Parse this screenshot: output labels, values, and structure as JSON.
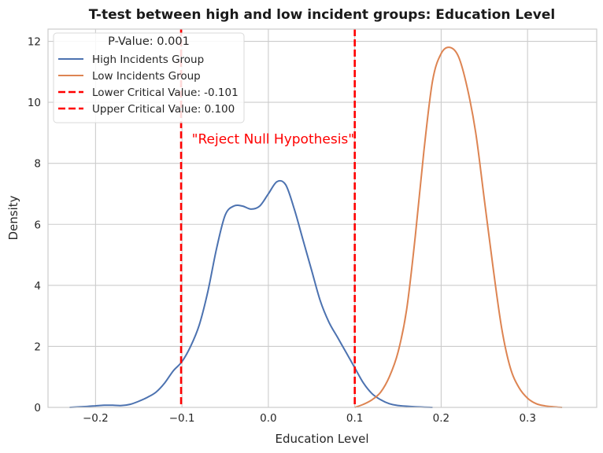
{
  "chart_data": {
    "type": "line",
    "title": "T-test between high and low incident groups: Education Level",
    "xlabel": "Education Level",
    "ylabel": "Density",
    "xlim": [
      -0.255,
      0.38
    ],
    "ylim": [
      0,
      12.4
    ],
    "xticks": [
      -0.2,
      -0.1,
      0.0,
      0.1,
      0.2,
      0.3
    ],
    "xtick_labels": [
      "−0.2",
      "−0.1",
      "0.0",
      "0.1",
      "0.2",
      "0.3"
    ],
    "yticks": [
      0,
      2,
      4,
      6,
      8,
      10,
      12
    ],
    "ytick_labels": [
      "0",
      "2",
      "4",
      "6",
      "8",
      "10",
      "12"
    ],
    "grid": true,
    "legend": {
      "title": "P-Value: 0.001",
      "placement": "top-left",
      "entries": [
        {
          "label": "High Incidents Group",
          "color": "#4c72b0",
          "style": "solid"
        },
        {
          "label": "Low Incidents Group",
          "color": "#dd8452",
          "style": "solid"
        },
        {
          "label": "Lower Critical Value: -0.101",
          "color": "#ff0000",
          "style": "dashed"
        },
        {
          "label": "Upper Critical Value: 0.100",
          "color": "#ff0000",
          "style": "dashed"
        }
      ]
    },
    "series": [
      {
        "name": "High Incidents Group",
        "color": "#4c72b0",
        "x": [
          -0.23,
          -0.21,
          -0.2,
          -0.19,
          -0.18,
          -0.17,
          -0.16,
          -0.15,
          -0.14,
          -0.13,
          -0.12,
          -0.11,
          -0.1,
          -0.09,
          -0.08,
          -0.07,
          -0.06,
          -0.05,
          -0.04,
          -0.03,
          -0.02,
          -0.01,
          0.0,
          0.01,
          0.02,
          0.03,
          0.04,
          0.05,
          0.06,
          0.07,
          0.08,
          0.09,
          0.1,
          0.11,
          0.12,
          0.13,
          0.14,
          0.15,
          0.17,
          0.19
        ],
        "y": [
          0.0,
          0.03,
          0.05,
          0.07,
          0.07,
          0.06,
          0.1,
          0.2,
          0.33,
          0.5,
          0.8,
          1.2,
          1.5,
          2.0,
          2.7,
          3.8,
          5.2,
          6.3,
          6.6,
          6.6,
          6.5,
          6.6,
          7.0,
          7.4,
          7.3,
          6.5,
          5.5,
          4.5,
          3.5,
          2.8,
          2.3,
          1.8,
          1.3,
          0.8,
          0.45,
          0.25,
          0.12,
          0.06,
          0.02,
          0.0
        ]
      },
      {
        "name": "Low Incidents Group",
        "color": "#dd8452",
        "x": [
          0.1,
          0.11,
          0.12,
          0.13,
          0.14,
          0.15,
          0.16,
          0.17,
          0.18,
          0.19,
          0.2,
          0.21,
          0.22,
          0.23,
          0.24,
          0.25,
          0.26,
          0.27,
          0.28,
          0.29,
          0.3,
          0.31,
          0.32,
          0.33,
          0.34
        ],
        "y": [
          0.0,
          0.1,
          0.25,
          0.5,
          1.0,
          1.8,
          3.2,
          5.6,
          8.4,
          10.7,
          11.6,
          11.8,
          11.5,
          10.5,
          9.0,
          6.8,
          4.6,
          2.6,
          1.3,
          0.65,
          0.3,
          0.12,
          0.05,
          0.02,
          0.0
        ]
      }
    ],
    "vlines": [
      {
        "name": "Lower Critical Value",
        "x": -0.101,
        "color": "#ff0000",
        "style": "dashed"
      },
      {
        "name": "Upper Critical Value",
        "x": 0.1,
        "color": "#ff0000",
        "style": "dashed"
      }
    ],
    "annotation": {
      "text": "\"Reject Null Hypothesis\"",
      "x": 0.0,
      "y": 8.8,
      "color": "#ff0000"
    }
  }
}
